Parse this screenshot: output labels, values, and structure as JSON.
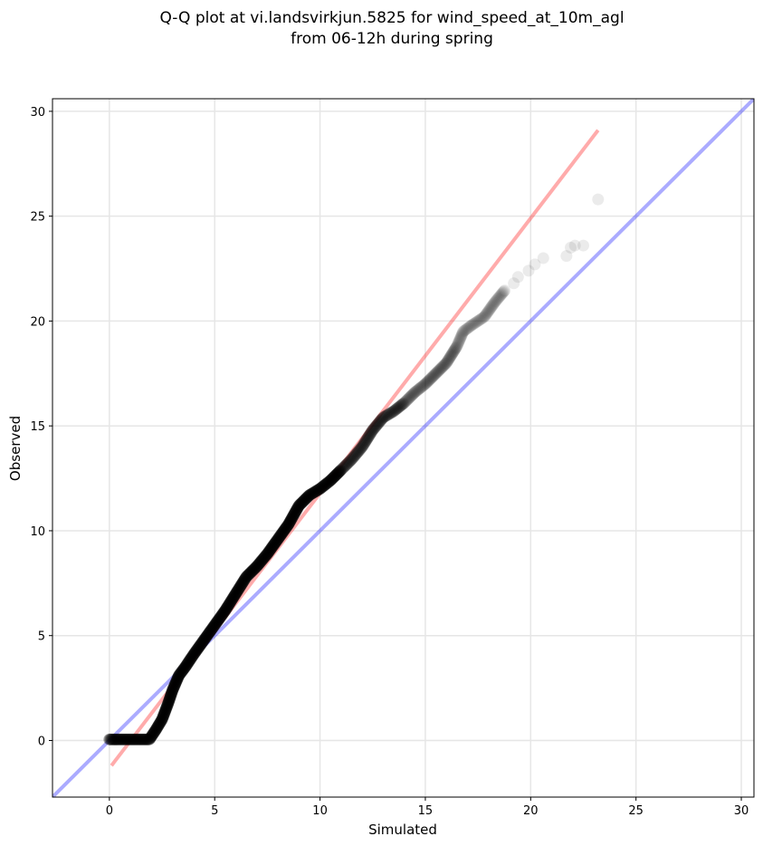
{
  "chart_data": {
    "type": "scatter",
    "title_line1": "Q-Q plot at vi.landsvirkjun.5825 for wind_speed_at_10m_agl",
    "title_line2": "from 06-12h during spring",
    "xlabel": "Simulated",
    "ylabel": "Observed",
    "xlim": [
      -2.7,
      30.6
    ],
    "ylim": [
      -2.7,
      30.6
    ],
    "xticks": [
      "0",
      "5",
      "10",
      "15",
      "20",
      "25",
      "30"
    ],
    "yticks": [
      "0",
      "5",
      "10",
      "15",
      "20",
      "25",
      "30"
    ],
    "grid": true,
    "point_color": "#000000",
    "reference_lines": [
      {
        "kind": "identity",
        "color": "#0000ff",
        "alpha": 0.33,
        "x": [
          -2.7,
          30.6
        ],
        "y": [
          -2.7,
          30.6
        ]
      },
      {
        "kind": "fit",
        "color": "#ff0000",
        "alpha": 0.33,
        "x": [
          0.1,
          23.2
        ],
        "y": [
          -1.2,
          29.1
        ]
      }
    ],
    "curve_knots": [
      [
        0.0,
        0.05
      ],
      [
        0.5,
        0.05
      ],
      [
        1.0,
        0.05
      ],
      [
        1.5,
        0.05
      ],
      [
        1.9,
        0.05
      ],
      [
        2.2,
        0.5
      ],
      [
        2.5,
        1.0
      ],
      [
        2.8,
        1.8
      ],
      [
        3.0,
        2.4
      ],
      [
        3.3,
        3.1
      ],
      [
        3.6,
        3.5
      ],
      [
        4.0,
        4.1
      ],
      [
        4.5,
        4.8
      ],
      [
        5.0,
        5.5
      ],
      [
        5.5,
        6.2
      ],
      [
        6.0,
        7.0
      ],
      [
        6.5,
        7.8
      ],
      [
        7.0,
        8.3
      ],
      [
        7.5,
        8.9
      ],
      [
        8.0,
        9.6
      ],
      [
        8.5,
        10.3
      ],
      [
        9.0,
        11.2
      ],
      [
        9.5,
        11.7
      ],
      [
        10.0,
        12.0
      ],
      [
        10.5,
        12.4
      ],
      [
        11.0,
        12.9
      ],
      [
        11.5,
        13.4
      ],
      [
        12.0,
        14.0
      ],
      [
        12.5,
        14.8
      ],
      [
        13.0,
        15.4
      ],
      [
        13.5,
        15.7
      ],
      [
        14.0,
        16.1
      ],
      [
        14.5,
        16.6
      ],
      [
        15.0,
        17.0
      ],
      [
        15.5,
        17.5
      ],
      [
        16.0,
        18.0
      ],
      [
        16.5,
        18.8
      ],
      [
        16.8,
        19.5
      ],
      [
        17.2,
        19.8
      ],
      [
        17.8,
        20.2
      ],
      [
        18.3,
        20.9
      ],
      [
        18.8,
        21.5
      ]
    ],
    "tail_points": [
      [
        19.2,
        21.8
      ],
      [
        19.4,
        22.1
      ],
      [
        19.9,
        22.4
      ],
      [
        20.2,
        22.7
      ],
      [
        20.6,
        23.0
      ],
      [
        21.7,
        23.1
      ],
      [
        21.9,
        23.5
      ],
      [
        22.1,
        23.6
      ],
      [
        22.5,
        23.6
      ],
      [
        23.2,
        25.8
      ]
    ]
  }
}
